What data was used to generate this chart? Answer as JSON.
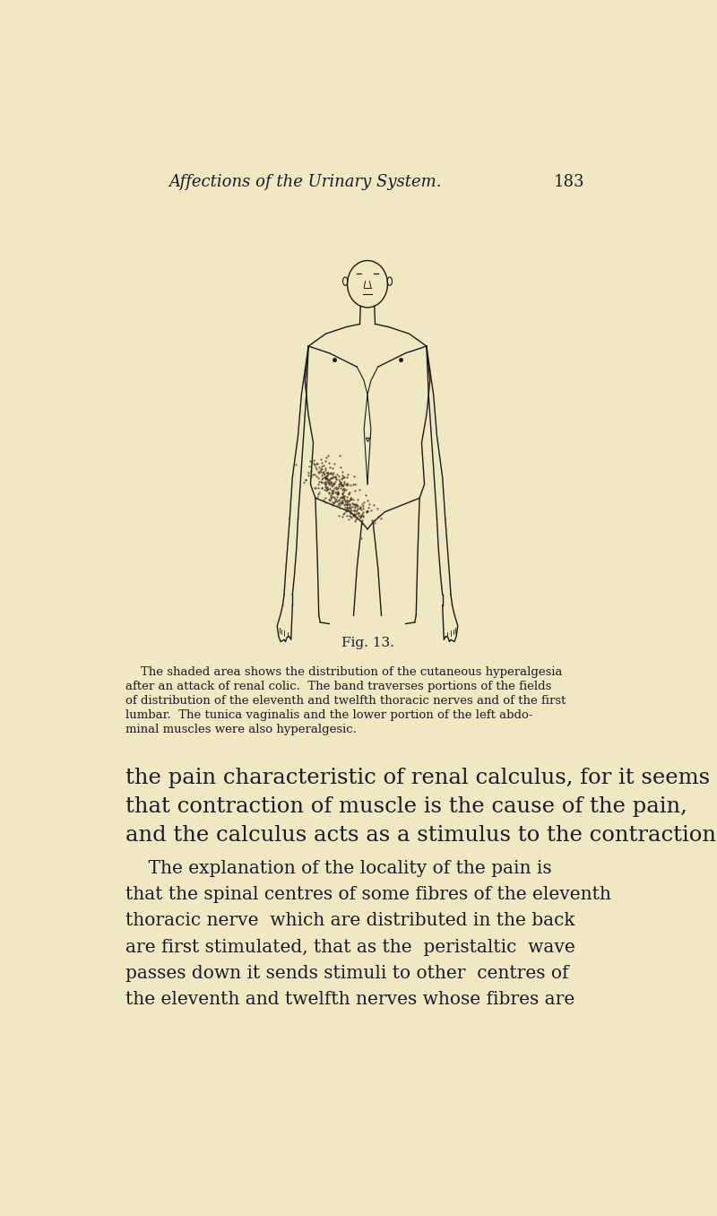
{
  "bg_color": "#f0e8c0",
  "header_title": "Affections of the Urinary System.",
  "header_page": "183",
  "header_fontsize": 13,
  "fig_caption": "Fig. 13.",
  "fig_caption_fontsize": 11,
  "text_color": "#1a1a2e",
  "line_color": "#1a1a1a",
  "body1_lines": [
    "    The shaded area shows the distribution of the cutaneous hyperalgesia",
    "after an attack of renal colic.  The band traverses portions of the fields",
    "of distribution of the eleventh and twelfth thoracic nerves and of the first",
    "lumbar.  The tunica vaginalis and the lower portion of the left abdo-",
    "minal muscles were also hyperalgesic."
  ],
  "body2_lines_large": [
    "the pain characteristic of renal calculus, for it seems",
    "that contraction of muscle is the cause of the pain,",
    "and the calculus acts as a stimulus to the contraction."
  ],
  "body2_lines_medium": [
    "    The explanation of the locality of the pain is",
    "that the spinal centres of some fibres of the eleventh",
    "thoracic nerve  which are distributed in the back",
    "are first stimulated, that as the  peristaltic  wave",
    "passes down it sends stimuli to other  centres of",
    "the eleventh and twelfth nerves whose fibres are"
  ]
}
